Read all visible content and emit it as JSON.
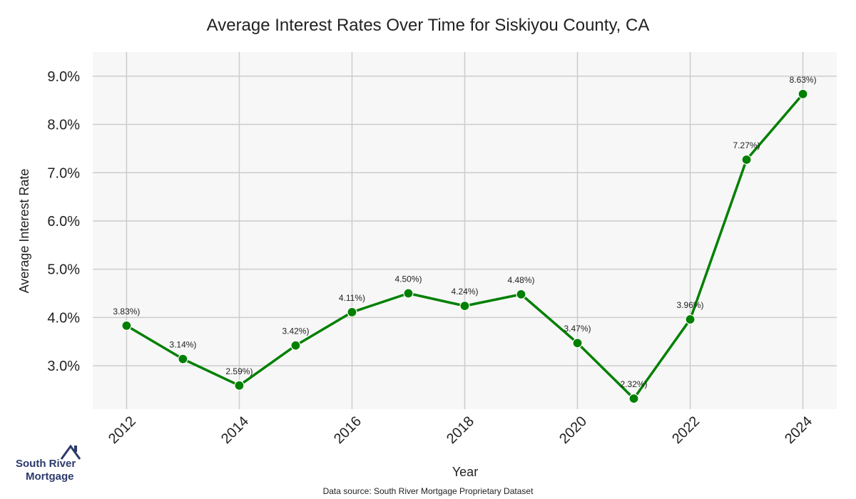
{
  "chart_data": {
    "type": "line",
    "title": "Average Interest Rates Over Time for Siskiyou County, CA",
    "xlabel": "Year",
    "ylabel": "Average Interest Rate",
    "x": [
      2012,
      2013,
      2014,
      2015,
      2016,
      2017,
      2018,
      2019,
      2020,
      2021,
      2022,
      2023,
      2024
    ],
    "series": [
      {
        "values": [
          3.83,
          3.14,
          2.59,
          3.42,
          4.11,
          4.5,
          4.24,
          4.48,
          3.47,
          2.32,
          3.96,
          7.27,
          8.63
        ],
        "labels": [
          "3.83%)",
          "3.14%)",
          "2.59%)",
          "3.42%)",
          "4.11%)",
          "4.50%)",
          "4.24%)",
          "4.48%)",
          "3.47%)",
          "2.32%)",
          "3.96%)",
          "7.27%)",
          "8.63%)"
        ],
        "color": "#008000"
      }
    ],
    "x_ticks": [
      "2012",
      "2014",
      "2016",
      "2018",
      "2020",
      "2022",
      "2024"
    ],
    "y_ticks": [
      "3.0%",
      "4.0%",
      "5.0%",
      "6.0%",
      "7.0%",
      "8.0%",
      "9.0%"
    ],
    "xlim": [
      2011.4,
      2024.6
    ],
    "ylim": [
      2.1,
      9.5
    ],
    "grid": true,
    "plot_background": "#f7f7f7",
    "grid_color": "#cccccc"
  },
  "source_note": "Data source: South River Mortgage Proprietary Dataset",
  "logo": {
    "line1": "South River",
    "line2": "Mortgage",
    "color": "#2b3a6b"
  }
}
